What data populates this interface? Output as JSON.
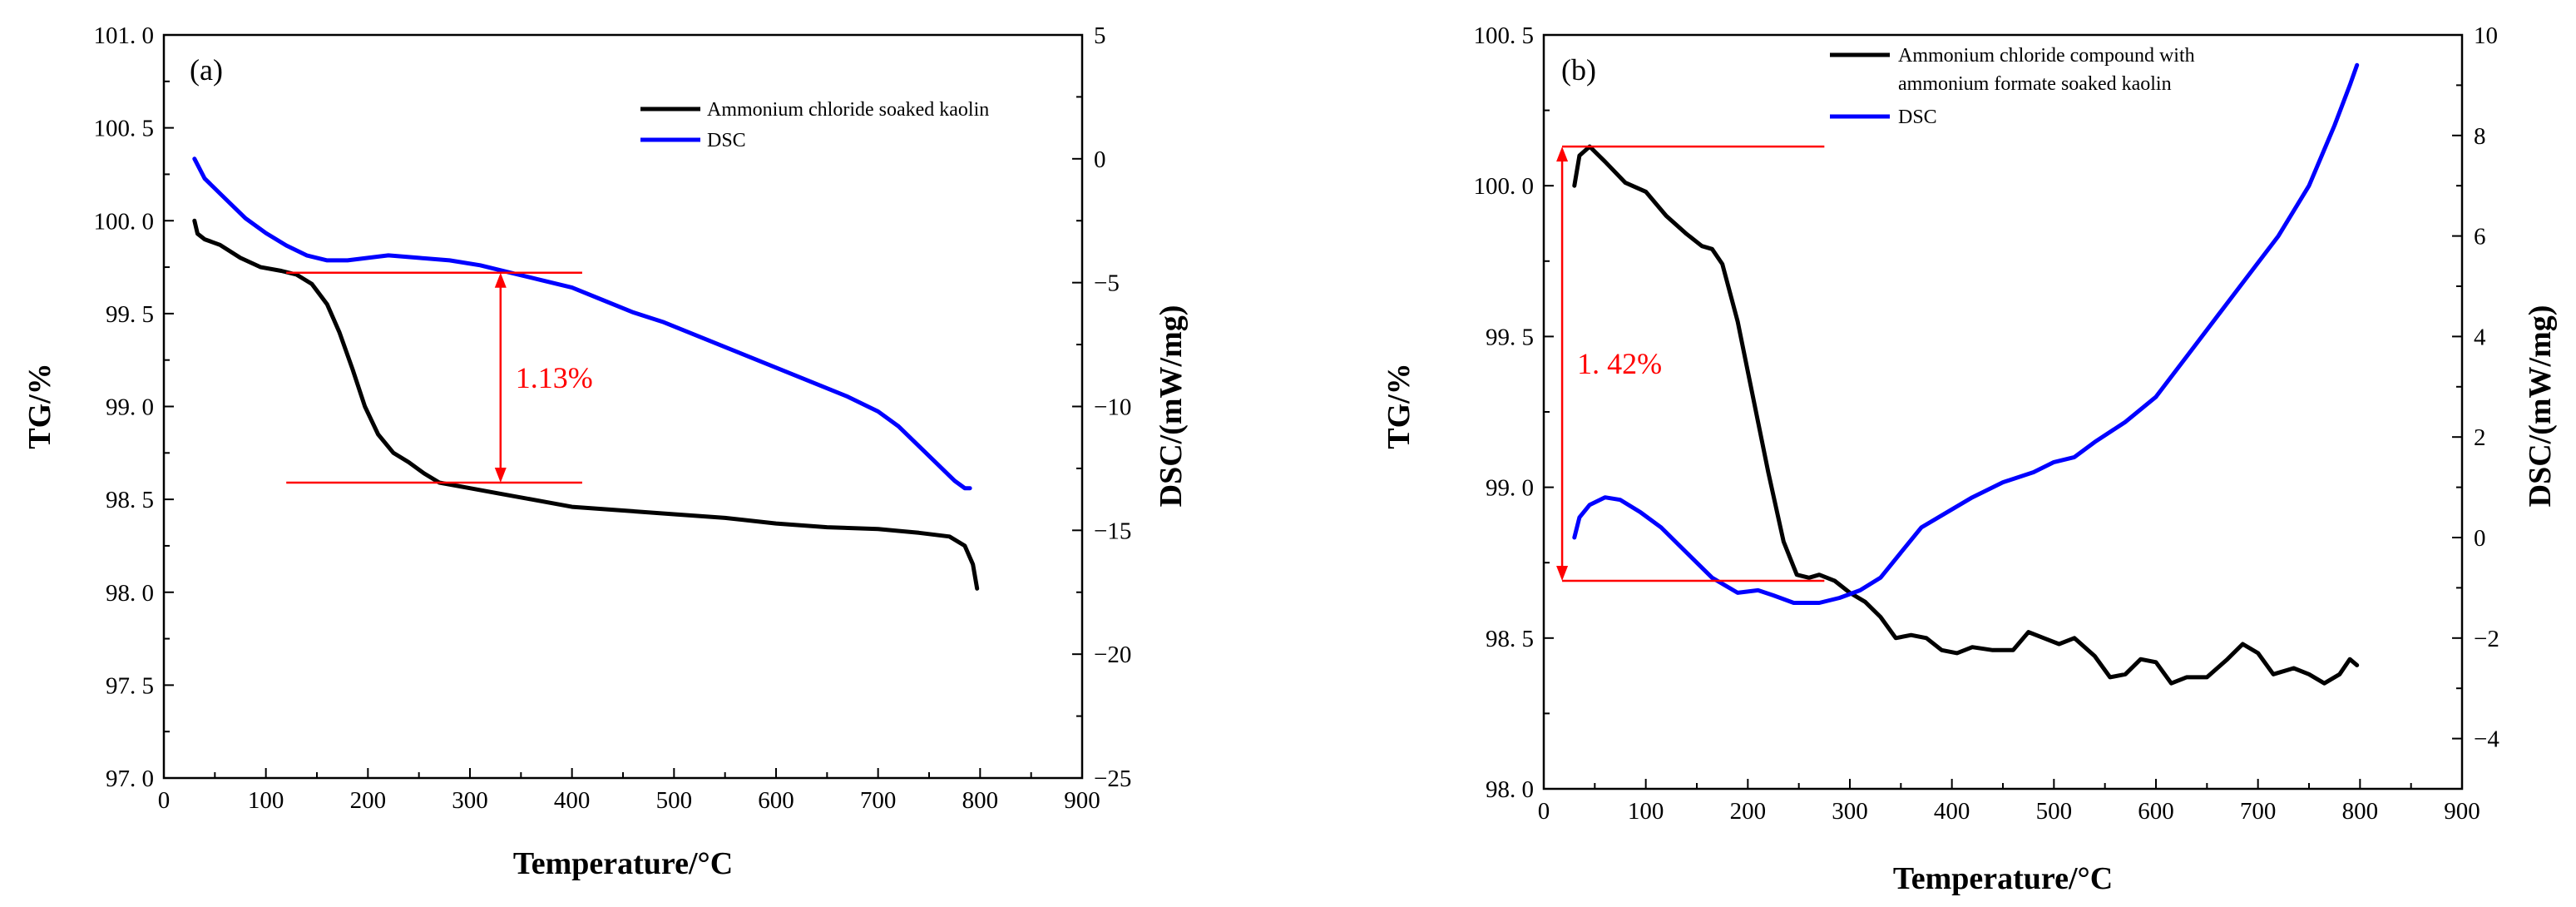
{
  "colors": {
    "tg": "#000000",
    "dsc": "#0000ff",
    "annotation": "#ff0000",
    "axis": "#000000"
  },
  "chart_data": [
    {
      "panel": "(a)",
      "type": "line",
      "xlabel": "Temperature/°C",
      "ylabel_left": "TG/%",
      "ylabel_right": "DSC/(mW/mg)",
      "xlim": [
        0,
        900
      ],
      "ylim_left": [
        97.0,
        101.0
      ],
      "ylim_right": [
        -25,
        5
      ],
      "x_ticks": [
        "0",
        "100",
        "200",
        "300",
        "400",
        "500",
        "600",
        "700",
        "800",
        "900"
      ],
      "y_left_ticks": [
        "97. 0",
        "97. 5",
        "98. 0",
        "98. 5",
        "99. 0",
        "99. 5",
        "100. 0",
        "100. 5",
        "101. 0"
      ],
      "y_right_ticks": [
        "5",
        "0",
        "−5",
        "−10",
        "−15",
        "−20",
        "−25"
      ],
      "legend": [
        "Ammonium chloride soaked kaolin",
        "DSC"
      ],
      "annotation": {
        "text": "1.13%",
        "x": 330,
        "top": 99.72,
        "bottom": 98.59,
        "x_from": 120,
        "x_to": 410
      },
      "series": [
        {
          "name": "Ammonium chloride soaked kaolin",
          "axis": "left",
          "points": [
            [
              30,
              100.0
            ],
            [
              33,
              99.93
            ],
            [
              40,
              99.9
            ],
            [
              55,
              99.87
            ],
            [
              75,
              99.8
            ],
            [
              95,
              99.75
            ],
            [
              115,
              99.73
            ],
            [
              130,
              99.71
            ],
            [
              145,
              99.66
            ],
            [
              160,
              99.55
            ],
            [
              172,
              99.4
            ],
            [
              185,
              99.2
            ],
            [
              197,
              99.0
            ],
            [
              210,
              98.85
            ],
            [
              225,
              98.75
            ],
            [
              240,
              98.7
            ],
            [
              255,
              98.64
            ],
            [
              270,
              98.59
            ],
            [
              300,
              98.56
            ],
            [
              330,
              98.53
            ],
            [
              360,
              98.5
            ],
            [
              400,
              98.46
            ],
            [
              450,
              98.44
            ],
            [
              500,
              98.42
            ],
            [
              550,
              98.4
            ],
            [
              600,
              98.37
            ],
            [
              650,
              98.35
            ],
            [
              700,
              98.34
            ],
            [
              740,
              98.32
            ],
            [
              770,
              98.3
            ],
            [
              785,
              98.25
            ],
            [
              793,
              98.15
            ],
            [
              797,
              98.02
            ]
          ]
        },
        {
          "name": "DSC",
          "axis": "right",
          "points": [
            [
              30,
              0
            ],
            [
              40,
              -0.8
            ],
            [
              60,
              -1.6
            ],
            [
              80,
              -2.4
            ],
            [
              100,
              -3.0
            ],
            [
              120,
              -3.5
            ],
            [
              140,
              -3.9
            ],
            [
              160,
              -4.1
            ],
            [
              180,
              -4.1
            ],
            [
              200,
              -4.0
            ],
            [
              220,
              -3.9
            ],
            [
              250,
              -4.0
            ],
            [
              280,
              -4.1
            ],
            [
              310,
              -4.3
            ],
            [
              340,
              -4.6
            ],
            [
              370,
              -4.9
            ],
            [
              400,
              -5.2
            ],
            [
              430,
              -5.7
            ],
            [
              460,
              -6.2
            ],
            [
              490,
              -6.6
            ],
            [
              520,
              -7.1
            ],
            [
              550,
              -7.6
            ],
            [
              580,
              -8.1
            ],
            [
              610,
              -8.6
            ],
            [
              640,
              -9.1
            ],
            [
              670,
              -9.6
            ],
            [
              700,
              -10.2
            ],
            [
              720,
              -10.8
            ],
            [
              740,
              -11.6
            ],
            [
              760,
              -12.4
            ],
            [
              775,
              -13.0
            ],
            [
              785,
              -13.3
            ],
            [
              790,
              -13.3
            ]
          ]
        }
      ]
    },
    {
      "panel": "(b)",
      "type": "line",
      "xlabel": "Temperature/°C",
      "ylabel_left": "TG/%",
      "ylabel_right": "DSC/(mW/mg)",
      "xlim": [
        0,
        900
      ],
      "ylim_left": [
        98.0,
        100.5
      ],
      "ylim_right": [
        -5,
        10
      ],
      "x_ticks": [
        "0",
        "100",
        "200",
        "300",
        "400",
        "500",
        "600",
        "700",
        "800",
        "900"
      ],
      "y_left_ticks": [
        "98. 0",
        "98. 5",
        "99. 0",
        "99. 5",
        "100. 0",
        "100. 5"
      ],
      "y_right_ticks": [
        "10",
        "8",
        "6",
        "4",
        "2",
        "0",
        "−2",
        "−4"
      ],
      "legend": [
        "Ammonium chloride compound with",
        "ammonium formate soaked kaolin",
        "DSC"
      ],
      "annotation": {
        "text": "1. 42%",
        "x": 18,
        "top": 100.13,
        "bottom": 98.69,
        "x_from": 18,
        "x_to": 275
      },
      "series": [
        {
          "name": "Ammonium chloride compound with ammonium formate soaked kaolin",
          "axis": "left",
          "points": [
            [
              30,
              100.0
            ],
            [
              35,
              100.1
            ],
            [
              45,
              100.13
            ],
            [
              60,
              100.08
            ],
            [
              80,
              100.01
            ],
            [
              100,
              99.98
            ],
            [
              120,
              99.9
            ],
            [
              140,
              99.84
            ],
            [
              155,
              99.8
            ],
            [
              165,
              99.79
            ],
            [
              175,
              99.74
            ],
            [
              190,
              99.55
            ],
            [
              205,
              99.3
            ],
            [
              220,
              99.05
            ],
            [
              235,
              98.82
            ],
            [
              248,
              98.71
            ],
            [
              260,
              98.7
            ],
            [
              270,
              98.71
            ],
            [
              285,
              98.69
            ],
            [
              300,
              98.65
            ],
            [
              315,
              98.62
            ],
            [
              330,
              98.57
            ],
            [
              345,
              98.5
            ],
            [
              360,
              98.51
            ],
            [
              375,
              98.5
            ],
            [
              390,
              98.46
            ],
            [
              405,
              98.45
            ],
            [
              420,
              98.47
            ],
            [
              440,
              98.46
            ],
            [
              460,
              98.46
            ],
            [
              475,
              98.52
            ],
            [
              490,
              98.5
            ],
            [
              505,
              98.48
            ],
            [
              520,
              98.5
            ],
            [
              540,
              98.44
            ],
            [
              555,
              98.37
            ],
            [
              570,
              98.38
            ],
            [
              585,
              98.43
            ],
            [
              600,
              98.42
            ],
            [
              615,
              98.35
            ],
            [
              630,
              98.37
            ],
            [
              650,
              98.37
            ],
            [
              670,
              98.43
            ],
            [
              685,
              98.48
            ],
            [
              700,
              98.45
            ],
            [
              715,
              98.38
            ],
            [
              735,
              98.4
            ],
            [
              750,
              98.38
            ],
            [
              765,
              98.35
            ],
            [
              780,
              98.38
            ],
            [
              790,
              98.43
            ],
            [
              797,
              98.41
            ]
          ]
        },
        {
          "name": "DSC",
          "axis": "right",
          "points": [
            [
              30,
              0
            ],
            [
              35,
              0.4
            ],
            [
              45,
              0.65
            ],
            [
              60,
              0.8
            ],
            [
              75,
              0.75
            ],
            [
              95,
              0.5
            ],
            [
              115,
              0.2
            ],
            [
              140,
              -0.3
            ],
            [
              165,
              -0.8
            ],
            [
              190,
              -1.1
            ],
            [
              210,
              -1.05
            ],
            [
              225,
              -1.15
            ],
            [
              245,
              -1.3
            ],
            [
              270,
              -1.3
            ],
            [
              290,
              -1.2
            ],
            [
              310,
              -1.05
            ],
            [
              330,
              -0.8
            ],
            [
              350,
              -0.3
            ],
            [
              370,
              0.2
            ],
            [
              395,
              0.5
            ],
            [
              420,
              0.8
            ],
            [
              450,
              1.1
            ],
            [
              480,
              1.3
            ],
            [
              500,
              1.5
            ],
            [
              520,
              1.6
            ],
            [
              540,
              1.9
            ],
            [
              570,
              2.3
            ],
            [
              600,
              2.8
            ],
            [
              630,
              3.6
            ],
            [
              660,
              4.4
            ],
            [
              690,
              5.2
            ],
            [
              720,
              6.0
            ],
            [
              750,
              7.0
            ],
            [
              775,
              8.2
            ],
            [
              790,
              9.0
            ],
            [
              797,
              9.4
            ]
          ]
        }
      ]
    }
  ]
}
